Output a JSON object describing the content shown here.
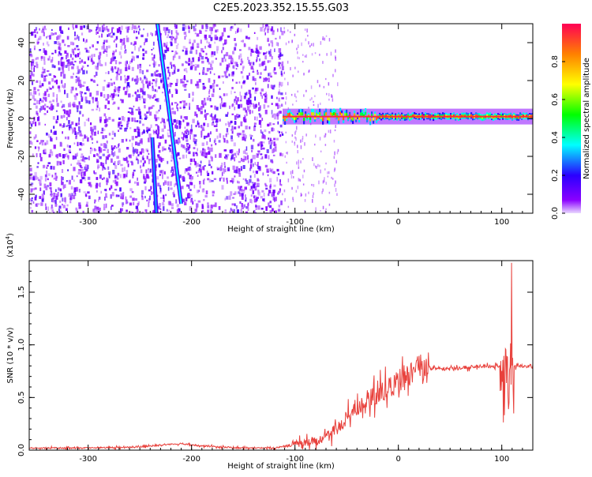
{
  "page": {
    "title": "C2E5.2023.352.15.55.G03"
  },
  "chart_data": [
    {
      "type": "heatmap",
      "title": "C2E5.2023.352.15.55.G03",
      "xlabel": "Height of straight line (km)",
      "ylabel": "Frequency (Hz)",
      "xlim": [
        -357,
        130
      ],
      "ylim": [
        -50,
        50
      ],
      "xticks": [
        -300,
        -200,
        -100,
        0,
        100
      ],
      "yticks": [
        -40,
        -20,
        0,
        20,
        40
      ],
      "colorbar": {
        "label": "Normalized spectral amplitude",
        "range": [
          0,
          1
        ],
        "ticks": [
          0.0,
          0.2,
          0.4,
          0.6,
          0.8
        ],
        "colormap": [
          "#e9d8ff",
          "#8a00ff",
          "#2a00ff",
          "#00ffff",
          "#00ff00",
          "#ffff00",
          "#ff8000",
          "#ff0055"
        ]
      },
      "features": {
        "noise_region_x": [
          -357,
          -112
        ],
        "tone_band": {
          "x": [
            -112,
            130
          ],
          "frequency": 1,
          "amplitude": 0.95
        },
        "tracks": [
          {
            "x": [
              -238,
              -234
            ],
            "y": [
              -10,
              -50
            ],
            "amplitude": 0.3
          },
          {
            "x": [
              -233,
              -210
            ],
            "y": [
              50,
              -45
            ],
            "amplitude": 0.35
          }
        ]
      }
    },
    {
      "type": "line",
      "xlabel": "Height of straight line (km)",
      "ylabel": "SNR (10 * v/v)",
      "y_multiplier": "(x10^4)",
      "y_multiplier_base": "(x10",
      "y_multiplier_exp": "4",
      "y_multiplier_close": ")",
      "xlim": [
        -357,
        130
      ],
      "ylim": [
        0,
        1.8
      ],
      "xticks": [
        -300,
        -200,
        -100,
        0,
        100
      ],
      "yticks": [
        0.0,
        0.5,
        1.0,
        1.5
      ],
      "color": "#e8413c",
      "series": [
        {
          "x": [
            -357,
            -300,
            -250,
            -230,
            -210,
            -190,
            -150,
            -120,
            -105,
            -95,
            -85,
            -75,
            -65,
            -55,
            -45,
            -35,
            -25,
            -15,
            -5,
            5,
            10,
            20,
            30,
            50,
            70,
            90,
            100,
            104,
            108,
            111,
            115,
            130
          ],
          "y": [
            0.02,
            0.02,
            0.03,
            0.05,
            0.06,
            0.04,
            0.02,
            0.02,
            0.05,
            0.08,
            0.07,
            0.1,
            0.15,
            0.25,
            0.35,
            0.45,
            0.5,
            0.55,
            0.62,
            0.68,
            0.72,
            0.76,
            0.78,
            0.77,
            0.79,
            0.8,
            0.8,
            0.8,
            0.55,
            0.8,
            0.8,
            0.8
          ]
        }
      ]
    }
  ]
}
